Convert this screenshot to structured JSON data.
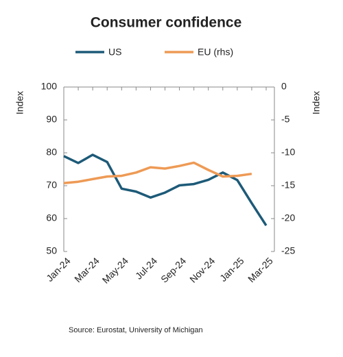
{
  "chart_data": {
    "type": "line",
    "title": "Consumer confidence",
    "source": "Source: Eurostat, University of Michigan",
    "ylabel": "Index",
    "y2label": "Index",
    "categories": [
      "Jan-24",
      null,
      "Mar-24",
      null,
      "May-24",
      null,
      "Jul-24",
      null,
      "Sep-24",
      null,
      "Nov-24",
      null,
      "Jan-25",
      null,
      "Mar-25"
    ],
    "series": [
      {
        "name": "US",
        "color": "#1d5a78",
        "values": [
          79,
          76.9,
          79.4,
          77.2,
          69.1,
          68.2,
          66.4,
          67.9,
          70.1,
          70.5,
          71.8,
          74,
          71.7,
          64.7,
          57.9
        ]
      },
      {
        "name": "EU (rhs)",
        "color": "#ee9a55",
        "axis": "y2",
        "values": [
          -14.6,
          -14.4,
          -14,
          -13.6,
          -13.5,
          -13,
          -12.2,
          -12.4,
          -12,
          -11.5,
          -12.6,
          -13.6,
          -13.5,
          -13.2,
          null
        ]
      }
    ],
    "ylim": [
      50,
      100
    ],
    "yticks": [
      50,
      60,
      70,
      80,
      90,
      100
    ],
    "y2lim": [
      -25,
      0
    ],
    "y2ticks": [
      -25,
      -20,
      -15,
      -10,
      -5,
      0
    ],
    "legend": "top",
    "grid": false
  }
}
